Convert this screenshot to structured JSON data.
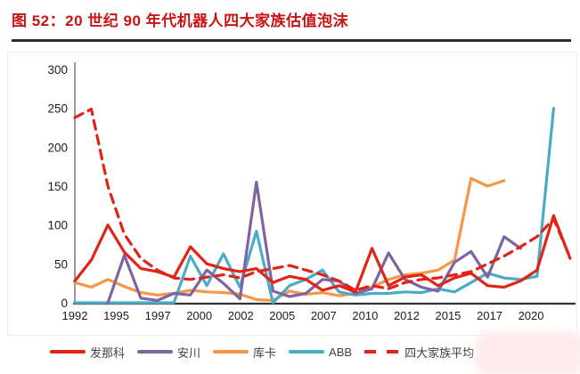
{
  "header": {
    "title": "图 52：20 世纪 90 年代机器人四大家族估值泡沫"
  },
  "chart_data": {
    "type": "line",
    "title": "20世纪90年代机器人四大家族估值泡沫",
    "x": [
      1992,
      1993,
      1994,
      1995,
      1996,
      1997,
      1998,
      1999,
      2000,
      2001,
      2002,
      2003,
      2004,
      2005,
      2006,
      2007,
      2008,
      2009,
      2010,
      2011,
      2012,
      2013,
      2014,
      2015,
      2016,
      2017,
      2018,
      2019,
      2020,
      2021,
      2022
    ],
    "x_tick_labels": [
      "1992",
      "1995",
      "1997",
      "2000",
      "2002",
      "2005",
      "2007",
      "2010",
      "2012",
      "2015",
      "2017",
      "2020"
    ],
    "y_ticks": [
      0,
      50,
      100,
      150,
      200,
      250,
      300
    ],
    "ylim": [
      0,
      300
    ],
    "grid": false,
    "legend_position": "bottom",
    "axis_color": "#444444",
    "series": [
      {
        "name": "发那科",
        "color": "#e02418",
        "style": "solid",
        "values": [
          28,
          55,
          100,
          65,
          44,
          40,
          33,
          72,
          50,
          44,
          40,
          44,
          26,
          34,
          30,
          16,
          22,
          14,
          70,
          22,
          33,
          36,
          22,
          32,
          38,
          22,
          20,
          28,
          42,
          112,
          57
        ]
      },
      {
        "name": "安川",
        "color": "#8064a2",
        "style": "solid",
        "values": [
          null,
          null,
          0,
          61,
          6,
          3,
          12,
          10,
          42,
          25,
          5,
          155,
          15,
          8,
          12,
          30,
          28,
          12,
          18,
          64,
          30,
          20,
          15,
          52,
          66,
          33,
          85,
          70,
          null,
          null,
          null
        ]
      },
      {
        "name": "库卡",
        "color": "#f79646",
        "style": "solid",
        "values": [
          26,
          20,
          30,
          21,
          13,
          10,
          12,
          16,
          14,
          13,
          11,
          4,
          3,
          15,
          11,
          13,
          9,
          12,
          20,
          30,
          36,
          38,
          42,
          55,
          160,
          150,
          157,
          null,
          null,
          null,
          null
        ]
      },
      {
        "name": "ABB",
        "color": "#4bacc6",
        "style": "solid",
        "values": [
          0,
          0,
          0,
          0,
          0,
          0,
          0,
          60,
          22,
          63,
          20,
          92,
          0,
          22,
          30,
          42,
          14,
          10,
          12,
          12,
          14,
          13,
          18,
          14,
          26,
          38,
          32,
          30,
          34,
          250,
          null
        ]
      },
      {
        "name": "四大家族平均",
        "color": "#e02418",
        "style": "dashed",
        "values": [
          238,
          249,
          150,
          88,
          57,
          42,
          32,
          30,
          33,
          36,
          32,
          40,
          44,
          48,
          42,
          36,
          28,
          16,
          22,
          18,
          26,
          30,
          32,
          36,
          40,
          50,
          60,
          72,
          85,
          108,
          58
        ]
      }
    ]
  }
}
